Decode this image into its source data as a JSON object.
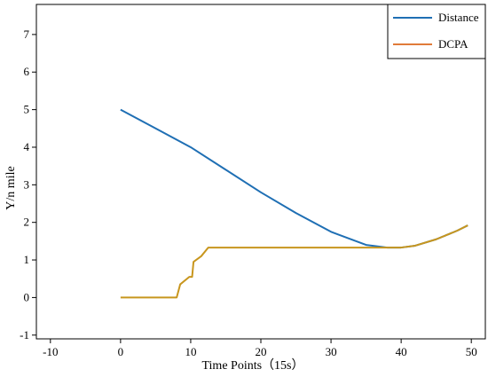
{
  "chart_data": {
    "type": "line",
    "title": "",
    "xlabel": "Time Points（15s）",
    "ylabel": "Y/n mile",
    "xlim": [
      -12,
      52
    ],
    "ylim": [
      -1.1,
      7.8
    ],
    "xticks": [
      -10,
      0,
      10,
      20,
      30,
      40,
      50
    ],
    "yticks": [
      -1,
      0,
      1,
      2,
      3,
      4,
      5,
      6,
      7
    ],
    "grid": false,
    "legend_position": "top-right",
    "series": [
      {
        "name": "Distance",
        "color": "#1f6fb4",
        "x": [
          0,
          5,
          10,
          15,
          20,
          25,
          30,
          35,
          38,
          40,
          42,
          45,
          48,
          49.5
        ],
        "y": [
          5.0,
          4.5,
          4.0,
          3.4,
          2.8,
          2.25,
          1.75,
          1.4,
          1.33,
          1.33,
          1.38,
          1.55,
          1.78,
          1.92
        ]
      },
      {
        "name": "DCPA",
        "color": "#e07b39",
        "x": [
          0,
          8,
          8.5,
          9.8,
          10.2,
          10.4,
          11.5,
          12.5,
          20,
          30,
          38,
          40,
          42,
          45,
          48,
          49.5
        ],
        "y": [
          0,
          0,
          0.35,
          0.55,
          0.55,
          0.95,
          1.1,
          1.33,
          1.33,
          1.33,
          1.33,
          1.33,
          1.38,
          1.55,
          1.78,
          1.92
        ]
      }
    ],
    "overlap_color": "#c8961e"
  }
}
